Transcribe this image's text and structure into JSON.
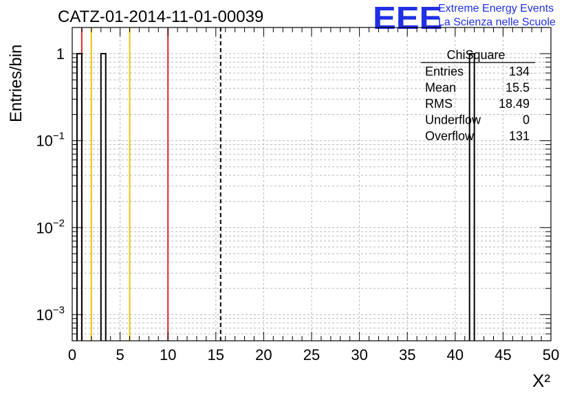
{
  "header": {
    "title": "CATZ-01-2014-11-01-00039",
    "logo_text": "EEE",
    "org_line1": "Extreme Energy Events",
    "org_line2": "La Scienza nelle Scuole"
  },
  "stats": {
    "name": "ChiSquare",
    "rows": [
      {
        "label": "Entries",
        "value": "134"
      },
      {
        "label": "Mean",
        "value": "15.5"
      },
      {
        "label": "RMS",
        "value": "18.49"
      },
      {
        "label": "Underflow",
        "value": "0"
      },
      {
        "label": "Overflow",
        "value": "131"
      }
    ]
  },
  "chart_data": {
    "type": "bar",
    "title": "CATZ-01-2014-11-01-00039",
    "xlabel": "X²",
    "ylabel": "Entries/bin",
    "xlim": [
      0,
      50
    ],
    "ylim": [
      0.0005,
      2
    ],
    "y_scale": "log",
    "grid": true,
    "x_ticks": [
      "0",
      "5",
      "10",
      "15",
      "20",
      "25",
      "30",
      "35",
      "40",
      "45",
      "50"
    ],
    "y_ticks": [
      {
        "value": 0.001,
        "base": "10",
        "exp": "−3"
      },
      {
        "value": 0.01,
        "base": "10",
        "exp": "−2"
      },
      {
        "value": 0.1,
        "base": "10",
        "exp": "−1"
      },
      {
        "value": 1,
        "base": "1",
        "exp": ""
      }
    ],
    "bins": [
      {
        "x0": 0.5,
        "x1": 1.0,
        "value": 1
      },
      {
        "x0": 3.0,
        "x1": 3.5,
        "value": 1
      },
      {
        "x0": 41.5,
        "x1": 42.0,
        "value": 1
      }
    ],
    "reference_lines": [
      {
        "x": 1.0,
        "color": "#e8232a",
        "style": "solid"
      },
      {
        "x": 2.0,
        "color": "#f2c10f",
        "style": "solid"
      },
      {
        "x": 6.0,
        "color": "#f2c10f",
        "style": "solid"
      },
      {
        "x": 10.0,
        "color": "#e8232a",
        "style": "solid"
      },
      {
        "x": 15.5,
        "color": "#000000",
        "style": "dashed"
      }
    ],
    "colors": {
      "bins": "#000000",
      "grid": "#b8b8b8",
      "axis": "#000000"
    }
  }
}
